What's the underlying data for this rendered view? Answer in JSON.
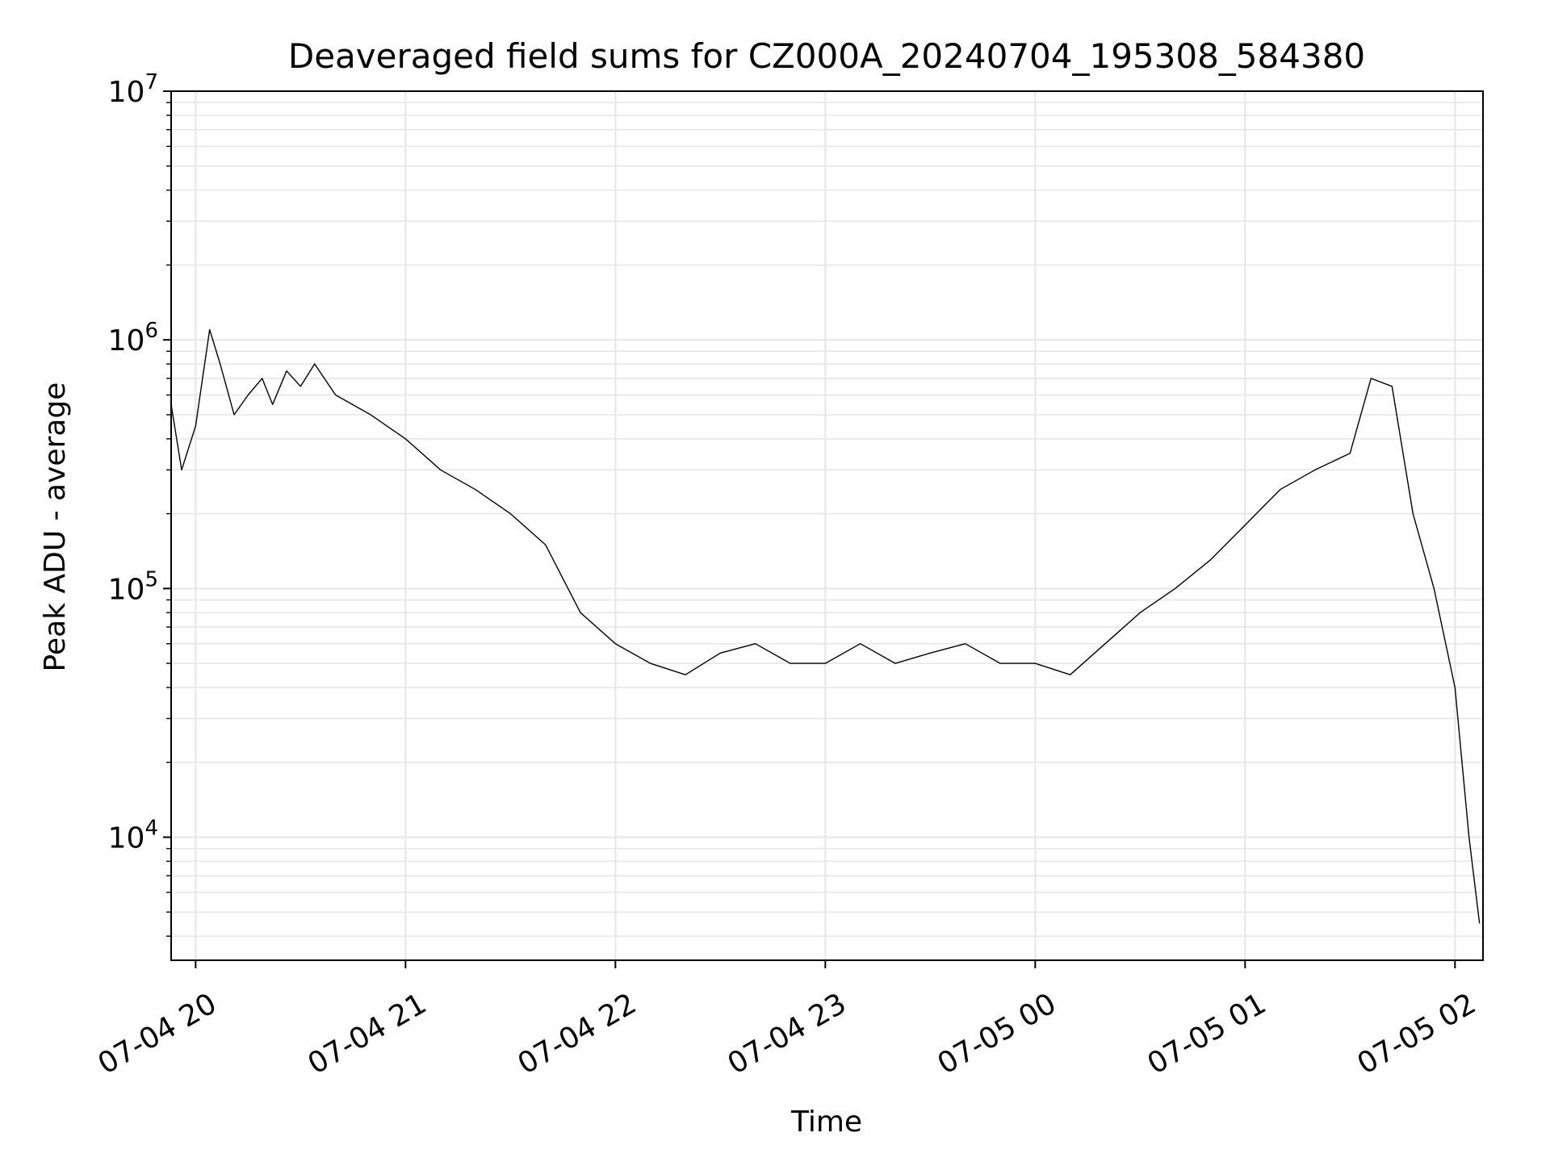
{
  "chart_data": {
    "type": "line",
    "title": "Deaveraged field sums for CZ000A_20240704_195308_584380",
    "xlabel": "Time",
    "ylabel": "Peak ADU - average",
    "y_scale": "log",
    "ylim": [
      3200,
      10000000
    ],
    "xlim": [
      "07-04 19:53",
      "07-05 02:08"
    ],
    "grid": true,
    "line_color": "#000000",
    "grid_color": "#e6e6e6",
    "x_ticks": [
      {
        "time": "07-04 20:00",
        "label": "07-04 20"
      },
      {
        "time": "07-04 21:00",
        "label": "07-04 21"
      },
      {
        "time": "07-04 22:00",
        "label": "07-04 22"
      },
      {
        "time": "07-04 23:00",
        "label": "07-04 23"
      },
      {
        "time": "07-05 00:00",
        "label": "07-05 00"
      },
      {
        "time": "07-05 01:00",
        "label": "07-05 01"
      },
      {
        "time": "07-05 02:00",
        "label": "07-05 02"
      }
    ],
    "y_ticks": [
      {
        "value": 10000,
        "base": "10",
        "exp": "4"
      },
      {
        "value": 100000,
        "base": "10",
        "exp": "5"
      },
      {
        "value": 1000000,
        "base": "10",
        "exp": "6"
      },
      {
        "value": 10000000,
        "base": "10",
        "exp": "7"
      }
    ],
    "series": [
      {
        "x": [
          "07-04 19:53",
          "07-04 19:56",
          "07-04 20:00",
          "07-04 20:04",
          "07-04 20:07",
          "07-04 20:11",
          "07-04 20:15",
          "07-04 20:19",
          "07-04 20:22",
          "07-04 20:26",
          "07-04 20:30",
          "07-04 20:34",
          "07-04 20:40",
          "07-04 20:50",
          "07-04 21:00",
          "07-04 21:10",
          "07-04 21:20",
          "07-04 21:30",
          "07-04 21:40",
          "07-04 21:50",
          "07-04 22:00",
          "07-04 22:10",
          "07-04 22:20",
          "07-04 22:30",
          "07-04 22:40",
          "07-04 22:50",
          "07-04 23:00",
          "07-04 23:10",
          "07-04 23:20",
          "07-04 23:30",
          "07-04 23:40",
          "07-04 23:50",
          "07-05 00:00",
          "07-05 00:10",
          "07-05 00:20",
          "07-05 00:30",
          "07-05 00:40",
          "07-05 00:50",
          "07-05 01:00",
          "07-05 01:10",
          "07-05 01:20",
          "07-05 01:30",
          "07-05 01:36",
          "07-05 01:42",
          "07-05 01:48",
          "07-05 01:54",
          "07-05 02:00",
          "07-05 02:04",
          "07-05 02:07"
        ],
        "y": [
          550000,
          300000,
          450000,
          1100000,
          800000,
          500000,
          600000,
          700000,
          550000,
          750000,
          650000,
          800000,
          600000,
          500000,
          400000,
          300000,
          250000,
          200000,
          150000,
          80000,
          60000,
          50000,
          45000,
          55000,
          60000,
          50000,
          50000,
          60000,
          50000,
          55000,
          60000,
          50000,
          50000,
          45000,
          60000,
          80000,
          100000,
          130000,
          180000,
          250000,
          300000,
          350000,
          700000,
          650000,
          200000,
          100000,
          40000,
          10000,
          4500
        ]
      }
    ]
  }
}
